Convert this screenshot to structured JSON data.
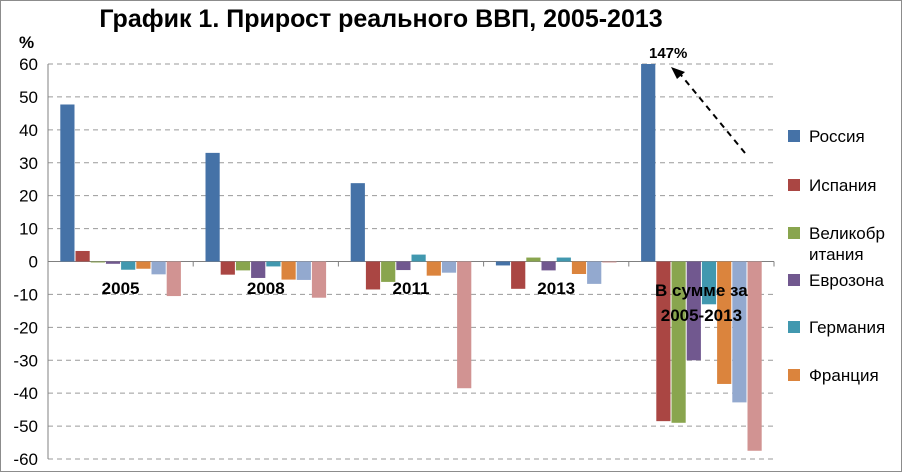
{
  "chart_data": {
    "type": "bar",
    "title": "График 1. Прирост реального ВВП, 2005-2013",
    "ylabel": "%",
    "ylim": [
      -60,
      60
    ],
    "yticks": [
      60,
      50,
      40,
      30,
      20,
      10,
      0,
      -10,
      -20,
      -30,
      -40,
      -50,
      -60
    ],
    "grid": true,
    "legend_position": "right",
    "categories": [
      "2005",
      "2008",
      "2011",
      "2013",
      "В сумме за 2005-2013"
    ],
    "annotation": {
      "text": "147%",
      "category": "В сумме за 2005-2013",
      "series": "Россия",
      "actual_value": 147
    },
    "series": [
      {
        "name": "Россия",
        "color": "#4572A7",
        "values": [
          47.7,
          33,
          23.8,
          -1.2,
          60
        ]
      },
      {
        "name": "Испания",
        "color": "#AA4643",
        "values": [
          3.2,
          -4,
          -8.5,
          -8.3,
          -48.5
        ]
      },
      {
        "name": "Великобритания",
        "color": "#89A54E",
        "values": [
          -0.3,
          -2.7,
          -6.2,
          1.2,
          -49
        ]
      },
      {
        "name": "Еврозона",
        "color": "#71588F",
        "values": [
          -0.7,
          -5,
          -2.6,
          -2.7,
          -30
        ]
      },
      {
        "name": "Германия",
        "color": "#4198AF",
        "values": [
          -2.5,
          -1.5,
          2.1,
          1.2,
          -13
        ]
      },
      {
        "name": "Франция",
        "color": "#DB843D",
        "values": [
          -2.2,
          -5.5,
          -4.3,
          -3.8,
          -37.2
        ]
      },
      {
        "name": "",
        "color": "#93A9CF",
        "values": [
          -3.9,
          -5.6,
          -3.4,
          -6.8,
          -42.8
        ]
      },
      {
        "name": "",
        "color": "#D19392",
        "values": [
          -10.5,
          -11,
          -38.5,
          -0.3,
          -57.5
        ]
      }
    ]
  }
}
